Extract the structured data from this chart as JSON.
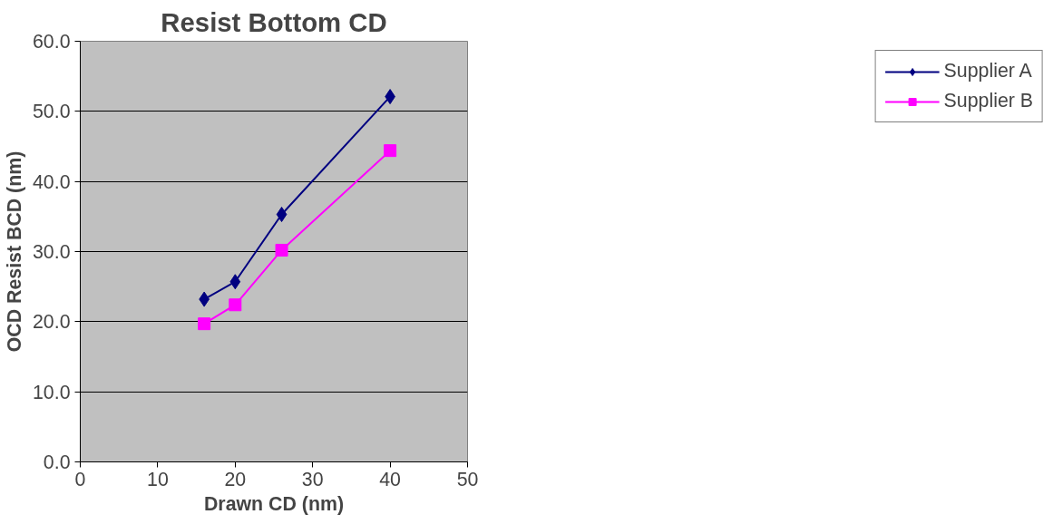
{
  "chart_data": {
    "type": "line",
    "title": "Resist Bottom CD",
    "xlabel": "Drawn CD (nm)",
    "ylabel": "OCD Resist BCD (nm)",
    "x": [
      16,
      20,
      26,
      40
    ],
    "series": [
      {
        "name": "Supplier A",
        "color": "#000080",
        "marker": "diamond",
        "values": [
          23.2,
          25.7,
          35.3,
          52.1
        ]
      },
      {
        "name": "Supplier B",
        "color": "#ff00ff",
        "marker": "square",
        "values": [
          19.7,
          22.4,
          30.2,
          44.4
        ]
      }
    ],
    "xlim": [
      0,
      50
    ],
    "xticks": [
      0,
      10,
      20,
      30,
      40,
      50
    ],
    "ylim": [
      0,
      60
    ],
    "yticks": [
      {
        "value": 0,
        "label": "0.0"
      },
      {
        "value": 10,
        "label": "10.0"
      },
      {
        "value": 20,
        "label": "20.0"
      },
      {
        "value": 30,
        "label": "30.0"
      },
      {
        "value": 40,
        "label": "40.0"
      },
      {
        "value": 50,
        "label": "50.0"
      },
      {
        "value": 60,
        "label": "60.0"
      }
    ],
    "grid": "y",
    "legend": "right",
    "line_style": "solid"
  }
}
